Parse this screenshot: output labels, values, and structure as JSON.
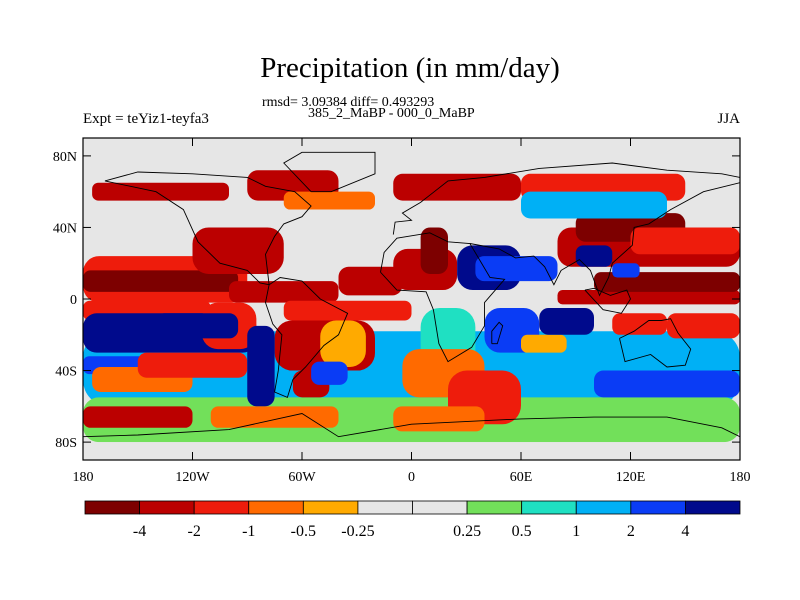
{
  "chart_data": {
    "type": "heatmap",
    "title": "Precipitation (in mm/day)",
    "stats_line": "rmsd= 3.09384  diff= 0.493293",
    "subtitle": "385_2_MaBP - 000_0_MaBP",
    "left_label": "Expt = teYiz1-teyfa3",
    "right_label": "JJA",
    "x_range": [
      -180,
      180
    ],
    "y_range": [
      -90,
      90
    ],
    "x_ticks": [
      {
        "value": -180,
        "label": "180"
      },
      {
        "value": -120,
        "label": "120W"
      },
      {
        "value": -60,
        "label": "60W"
      },
      {
        "value": 0,
        "label": "0"
      },
      {
        "value": 60,
        "label": "60E"
      },
      {
        "value": 120,
        "label": "120E"
      },
      {
        "value": 180,
        "label": "180"
      }
    ],
    "y_ticks": [
      {
        "value": 80,
        "label": "80N"
      },
      {
        "value": 40,
        "label": "40N"
      },
      {
        "value": 0,
        "label": "0"
      },
      {
        "value": -40,
        "label": "40S"
      },
      {
        "value": -80,
        "label": "80S"
      }
    ],
    "colorbar": {
      "colors": [
        "#7d0000",
        "#bb0000",
        "#ee1c0c",
        "#ff6a00",
        "#ffaa00",
        "#e6e6e6",
        "#e6e6e6",
        "#72e05a",
        "#1fe0c2",
        "#00b0f5",
        "#0a3cf5",
        "#000a8c"
      ],
      "levels": [
        "-4",
        "-2",
        "-1",
        "-0.5",
        "-0.25",
        "0.25",
        "0.5",
        "1",
        "2",
        "4"
      ]
    }
  }
}
